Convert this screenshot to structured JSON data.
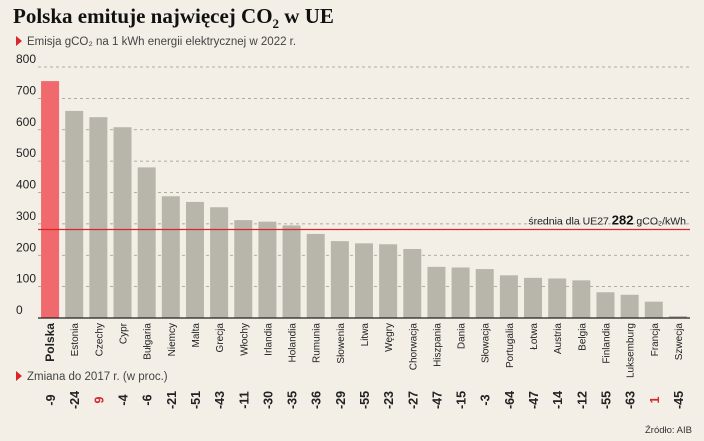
{
  "title_main": "Polska emituje najwięcej CO",
  "title_sub": "2",
  "title_end": " w UE",
  "subtitle": "Emisja gCO₂ na 1 kWh energii elektrycznej w 2022 r.",
  "change_label": "Zmiana do 2017 r. (w proc.)",
  "source": "Źródło: AIB",
  "colors": {
    "bar": "#b8b5aa",
    "highlight": "#f0696c",
    "accent": "#d9262c",
    "grid": "#9a968c"
  },
  "chart_data": {
    "type": "bar",
    "categories": [
      "Polska",
      "Estonia",
      "Czechy",
      "Cypr",
      "Bułgaria",
      "Niemcy",
      "Malta",
      "Grecja",
      "Włochy",
      "Irlandia",
      "Holandia",
      "Rumunia",
      "Słowenia",
      "Litwa",
      "Węgry",
      "Chorwacja",
      "Hiszpania",
      "Dania",
      "Słowacja",
      "Portugalia",
      "Łotwa",
      "Austria",
      "Belgia",
      "Finlandia",
      "Luksemburg",
      "Francja",
      "Szwecja"
    ],
    "values": [
      755,
      660,
      640,
      608,
      480,
      388,
      370,
      353,
      312,
      307,
      295,
      268,
      245,
      238,
      235,
      220,
      163,
      161,
      156,
      136,
      128,
      126,
      120,
      82,
      74,
      52,
      6
    ],
    "changes": [
      "-9",
      "-24",
      "9",
      "-4",
      "-6",
      "-21",
      "-51",
      "-43",
      "-11",
      "-30",
      "-35",
      "-36",
      "-29",
      "-55",
      "-23",
      "-27",
      "-47",
      "-15",
      "-3",
      "-64",
      "-47",
      "-14",
      "-12",
      "-55",
      "-63",
      "1",
      "-45"
    ],
    "highlight_category": "Polska",
    "yticks": [
      "0",
      "100",
      "200",
      "300",
      "400",
      "500",
      "600",
      "700",
      "800"
    ],
    "ylim": [
      0,
      800
    ],
    "average": {
      "value": 282,
      "label": "średnia dla UE27",
      "value_text": "282",
      "unit": "gCO₂/kWh"
    },
    "grid": true
  }
}
